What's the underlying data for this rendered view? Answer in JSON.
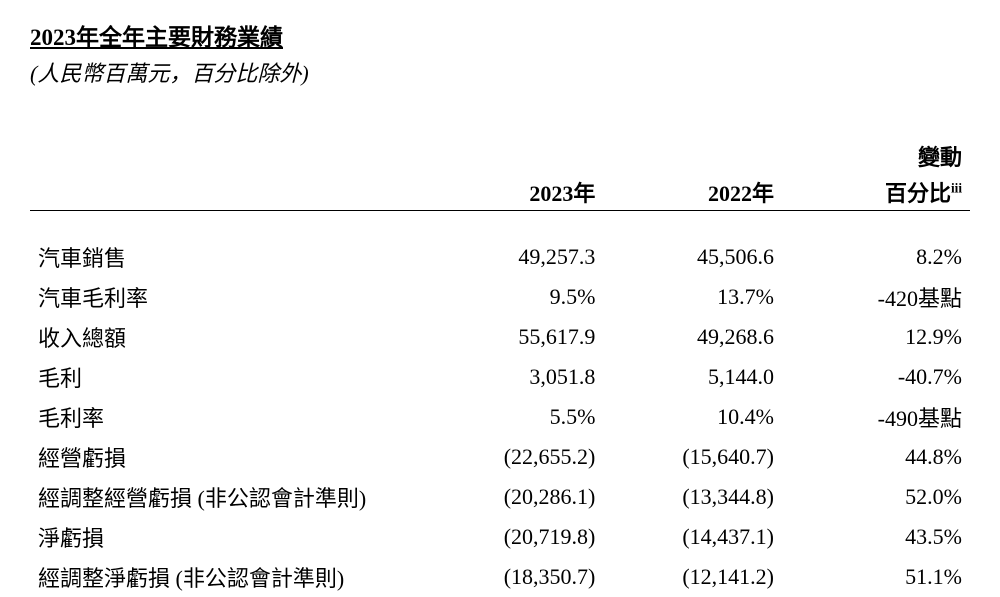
{
  "title": "2023年全年主要財務業績",
  "subtitle": "(人民幣百萬元，百分比除外)",
  "columns": {
    "label": "",
    "y2023": "2023年",
    "y2022": "2022年",
    "change_line1": "變動",
    "change_line2_prefix": "百分比",
    "change_line2_suffix": "iii"
  },
  "rows": [
    {
      "label": "汽車銷售",
      "y2023": "49,257.3",
      "y2022": "45,506.6",
      "change": "8.2%"
    },
    {
      "label": "汽車毛利率",
      "y2023": "9.5%",
      "y2022": "13.7%",
      "change": "-420基點"
    },
    {
      "label": "收入總額",
      "y2023": "55,617.9",
      "y2022": "49,268.6",
      "change": "12.9%"
    },
    {
      "label": "毛利",
      "y2023": "3,051.8",
      "y2022": "5,144.0",
      "change": "-40.7%"
    },
    {
      "label": "毛利率",
      "y2023": "5.5%",
      "y2022": "10.4%",
      "change": "-490基點"
    },
    {
      "label": "經營虧損",
      "y2023": "(22,655.2)",
      "y2022": "(15,640.7)",
      "change": "44.8%"
    },
    {
      "label": "經調整經營虧損 (非公認會計準則)",
      "y2023": "(20,286.1)",
      "y2022": "(13,344.8)",
      "change": "52.0%"
    },
    {
      "label": "淨虧損",
      "y2023": "(20,719.8)",
      "y2022": "(14,437.1)",
      "change": "43.5%"
    },
    {
      "label": "經調整淨虧損 (非公認會計準則)",
      "y2023": "(18,350.7)",
      "y2022": "(12,141.2)",
      "change": "51.1%"
    }
  ],
  "style": {
    "background_color": "#ffffff",
    "text_color": "#000000",
    "title_fontsize": 23,
    "body_fontsize": 22,
    "border_color": "#000000"
  }
}
